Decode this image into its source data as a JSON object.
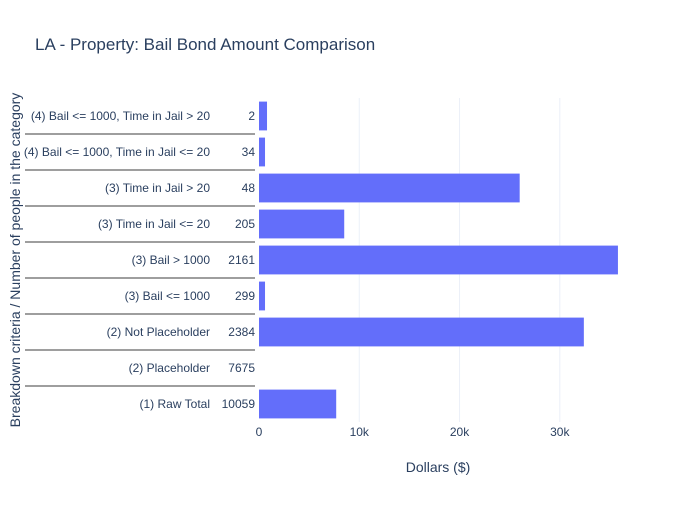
{
  "chart_data": {
    "type": "bar",
    "orientation": "horizontal",
    "title": "LA - Property: Bail Bond Amount Comparison",
    "xlabel": "Dollars ($)",
    "ylabel": "Breakdown criteria / Number of people in the category",
    "xlim": [
      0,
      38000
    ],
    "xticks": [
      {
        "value": 0,
        "label": "0"
      },
      {
        "value": 10000,
        "label": "10k"
      },
      {
        "value": 20000,
        "label": "20k"
      },
      {
        "value": 30000,
        "label": "30k"
      }
    ],
    "grid": true,
    "bar_color": "#636efa",
    "categories": [
      {
        "label": "(4) Bail <= 1000, Time in Jail > 20",
        "count": "2",
        "value": 800
      },
      {
        "label": "(4) Bail <= 1000, Time in Jail <= 20",
        "count": "34",
        "value": 600
      },
      {
        "label": "(3) Time in Jail > 20",
        "count": "48",
        "value": 26000
      },
      {
        "label": "(3) Time in Jail <= 20",
        "count": "205",
        "value": 8500
      },
      {
        "label": "(3) Bail > 1000",
        "count": "2161",
        "value": 35800
      },
      {
        "label": "(3) Bail <= 1000",
        "count": "299",
        "value": 600
      },
      {
        "label": "(2) Not Placeholder",
        "count": "2384",
        "value": 32400
      },
      {
        "label": "(2) Placeholder",
        "count": "7675",
        "value": 0
      },
      {
        "label": "(1) Raw Total",
        "count": "10059",
        "value": 7700
      }
    ]
  }
}
